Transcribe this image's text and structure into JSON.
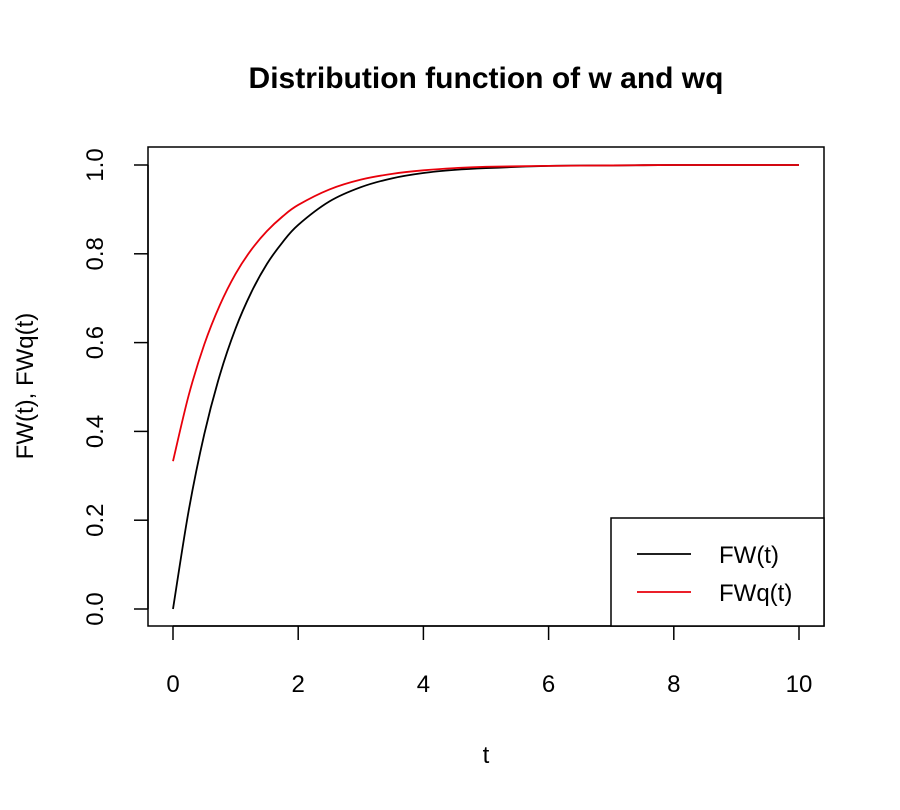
{
  "chart_data": {
    "type": "line",
    "title": "Distribution function of w and wq",
    "xlabel": "t",
    "ylabel": "FW(t), FWq(t)",
    "xlim": [
      0,
      10
    ],
    "ylim": [
      0,
      1
    ],
    "x_ticks": [
      0,
      2,
      4,
      6,
      8,
      10
    ],
    "y_ticks": [
      0.0,
      0.2,
      0.4,
      0.6,
      0.8,
      1.0
    ],
    "x_tick_labels": [
      "0",
      "2",
      "4",
      "6",
      "8",
      "10"
    ],
    "y_tick_labels": [
      "0.0",
      "0.2",
      "0.4",
      "0.6",
      "0.8",
      "1.0"
    ],
    "grid": false,
    "legend_position": "bottom-right",
    "x": [
      0,
      0.25,
      0.5,
      0.75,
      1,
      1.25,
      1.5,
      1.75,
      2,
      2.5,
      3,
      3.5,
      4,
      4.5,
      5,
      6,
      7,
      8,
      9,
      10
    ],
    "series": [
      {
        "name": "FW(t)",
        "color": "#000000",
        "values": [
          0.0,
          0.221,
          0.394,
          0.528,
          0.632,
          0.713,
          0.777,
          0.826,
          0.865,
          0.918,
          0.95,
          0.97,
          0.982,
          0.989,
          0.993,
          0.998,
          0.999,
          1.0,
          1.0,
          1.0
        ]
      },
      {
        "name": "FWq(t)",
        "color": "#e8000b",
        "values": [
          0.333,
          0.481,
          0.596,
          0.685,
          0.755,
          0.809,
          0.851,
          0.884,
          0.91,
          0.945,
          0.967,
          0.98,
          0.988,
          0.993,
          0.996,
          0.998,
          0.999,
          1.0,
          1.0,
          1.0
        ]
      }
    ]
  }
}
